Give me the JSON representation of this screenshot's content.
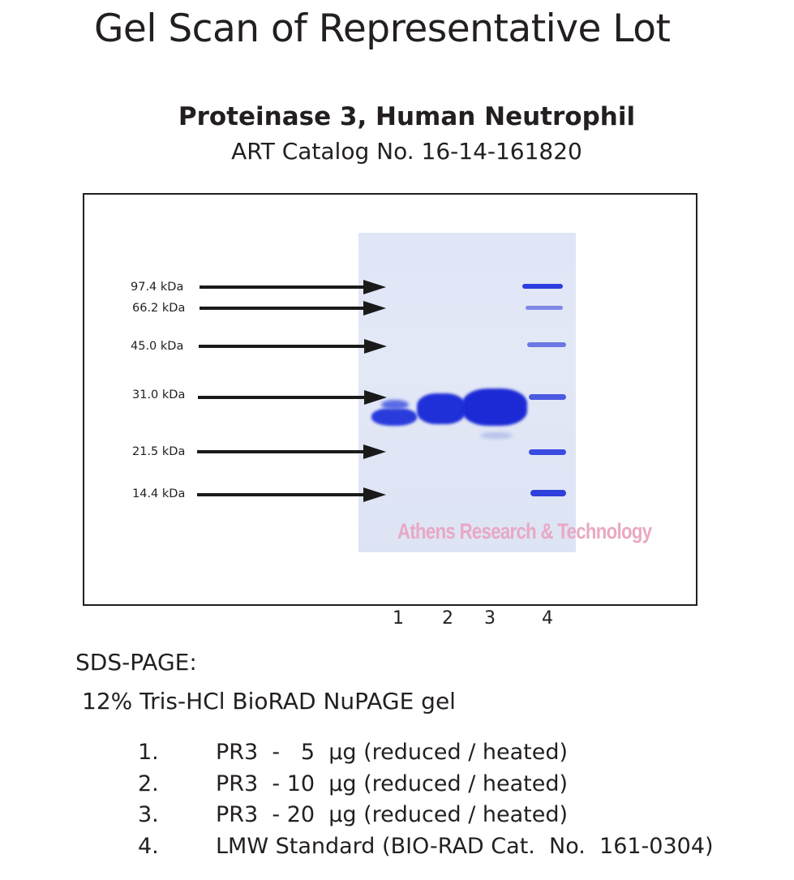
{
  "header": {
    "title": "Gel Scan of Representative Lot",
    "product": "Proteinase 3, Human Neutrophil",
    "catalog": "ART Catalog No. 16-14-161820"
  },
  "gel": {
    "markers": [
      "97.4 kDa",
      "66.2 kDa",
      "45.0 kDa",
      "31.0 kDa",
      "21.5 kDa",
      "14.4 kDa"
    ],
    "watermark": "Athens Research & Technology",
    "lanes": [
      "1",
      "2",
      "3",
      "4"
    ],
    "band_color": "#2432d8"
  },
  "method": {
    "heading": "SDS-PAGE:",
    "gel_type": "12% Tris-HCl BioRAD NuPAGE gel"
  },
  "legend": [
    {
      "num": "1.",
      "text": "PR3  -   5  µg (reduced / heated)"
    },
    {
      "num": "2.",
      "text": "PR3  - 10  µg (reduced / heated)"
    },
    {
      "num": "3.",
      "text": "PR3  - 20  µg (reduced / heated)"
    },
    {
      "num": "4.",
      "text": "LMW Standard (BIO-RAD Cat.  No.  161-0304)"
    }
  ]
}
